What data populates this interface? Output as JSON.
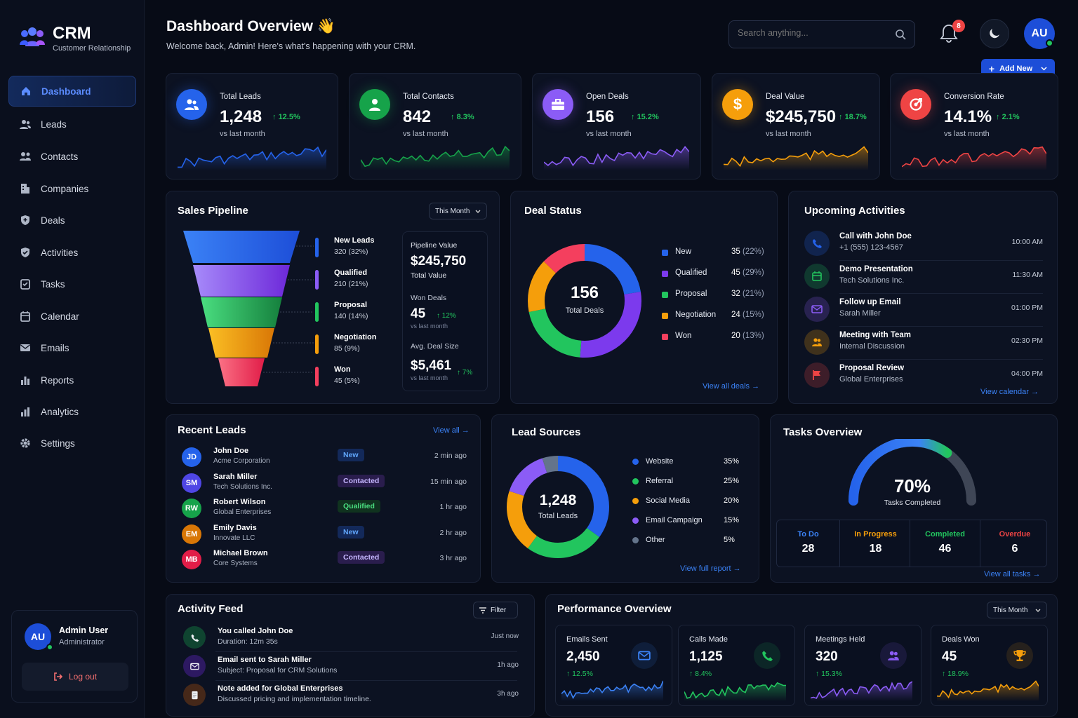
{
  "brand": {
    "name": "CRM",
    "subtitle": "Customer Relationship"
  },
  "nav": [
    {
      "label": "Dashboard",
      "icon": "home-icon",
      "active": true
    },
    {
      "label": "Leads",
      "icon": "users-icon"
    },
    {
      "label": "Contacts",
      "icon": "contacts-icon"
    },
    {
      "label": "Companies",
      "icon": "building-icon"
    },
    {
      "label": "Deals",
      "icon": "shield-icon"
    },
    {
      "label": "Activities",
      "icon": "activity-shield-icon"
    },
    {
      "label": "Tasks",
      "icon": "checklist-icon"
    },
    {
      "label": "Calendar",
      "icon": "calendar-icon"
    },
    {
      "label": "Emails",
      "icon": "mail-icon"
    },
    {
      "label": "Reports",
      "icon": "report-icon"
    },
    {
      "label": "Analytics",
      "icon": "bar-chart-icon"
    },
    {
      "label": "Settings",
      "icon": "gear-icon"
    }
  ],
  "user": {
    "initials": "AU",
    "name": "Admin User",
    "role": "Administrator",
    "logout": "Log out"
  },
  "header": {
    "title": "Dashboard Overview 👋",
    "subtitle": "Welcome back, Admin! Here's what's happening with your CRM.",
    "search_placeholder": "Search anything...",
    "notif_count": "8",
    "avatar": "AU",
    "add_new": "Add New"
  },
  "kpis": [
    {
      "title": "Total Leads",
      "value": "1,248",
      "change": "12.5%",
      "sub": "vs last month",
      "color": "#2563eb"
    },
    {
      "title": "Total Contacts",
      "value": "842",
      "change": "8.3%",
      "sub": "vs last month",
      "color": "#16a34a"
    },
    {
      "title": "Open Deals",
      "value": "156",
      "change": "15.2%",
      "sub": "vs last month",
      "color": "#8b5cf6"
    },
    {
      "title": "Deal Value",
      "value": "$245,750",
      "change": "18.7%",
      "sub": "vs last month",
      "color": "#f59e0b"
    },
    {
      "title": "Conversion Rate",
      "value": "14.1%",
      "change": "2.1%",
      "sub": "vs last month",
      "color": "#ef4444"
    }
  ],
  "pipeline": {
    "title": "Sales Pipeline",
    "period": "This Month",
    "stages": [
      {
        "name": "New Leads",
        "value": "320 (32%)",
        "color": "#2563eb"
      },
      {
        "name": "Qualified",
        "value": "210 (21%)",
        "color": "#8b5cf6"
      },
      {
        "name": "Proposal",
        "value": "140 (14%)",
        "color": "#22c55e"
      },
      {
        "name": "Negotiation",
        "value": "85 (9%)",
        "color": "#f59e0b"
      },
      {
        "name": "Won",
        "value": "45 (5%)",
        "color": "#f43f5e"
      }
    ],
    "summary": {
      "pv_label": "Pipeline Value",
      "pv_value": "$245,750",
      "pv_sub": "Total Value",
      "won_label": "Won Deals",
      "won_value": "45",
      "won_change": "12%",
      "won_sub": "vs last month",
      "avg_label": "Avg. Deal Size",
      "avg_value": "$5,461",
      "avg_change": "7%",
      "avg_sub": "vs last month"
    }
  },
  "deal_status": {
    "title": "Deal Status",
    "center_value": "156",
    "center_label": "Total Deals",
    "link": "View all deals",
    "items": [
      {
        "name": "New",
        "value": "35",
        "pct": "(22%)",
        "color": "#2563eb"
      },
      {
        "name": "Qualified",
        "value": "45",
        "pct": "(29%)",
        "color": "#7c3aed"
      },
      {
        "name": "Proposal",
        "value": "32",
        "pct": "(21%)",
        "color": "#22c55e"
      },
      {
        "name": "Negotiation",
        "value": "24",
        "pct": "(15%)",
        "color": "#f59e0b"
      },
      {
        "name": "Won",
        "value": "20",
        "pct": "(13%)",
        "color": "#f43f5e"
      }
    ]
  },
  "activities": {
    "title": "Upcoming Activities",
    "link": "View calendar",
    "items": [
      {
        "title": "Call with John Doe",
        "sub": "+1 (555) 123-4567",
        "time": "10:00 AM",
        "color": "#2563eb",
        "icon": "phone-icon"
      },
      {
        "title": "Demo Presentation",
        "sub": "Tech Solutions Inc.",
        "time": "11:30 AM",
        "color": "#22c55e",
        "icon": "calendar-icon"
      },
      {
        "title": "Follow up Email",
        "sub": "Sarah Miller",
        "time": "01:00 PM",
        "color": "#8b5cf6",
        "icon": "mail-icon"
      },
      {
        "title": "Meeting with Team",
        "sub": "Internal Discussion",
        "time": "02:30 PM",
        "color": "#f59e0b",
        "icon": "team-icon"
      },
      {
        "title": "Proposal Review",
        "sub": "Global Enterprises",
        "time": "04:00 PM",
        "color": "#ef4444",
        "icon": "flag-icon"
      }
    ]
  },
  "recent_leads": {
    "title": "Recent Leads",
    "link": "View all",
    "items": [
      {
        "initials": "JD",
        "name": "John Doe",
        "company": "Acme Corporation",
        "status": "New",
        "time": "2 min ago",
        "color": "#2563eb",
        "status_bg": "#13295a",
        "status_fg": "#60a5fa"
      },
      {
        "initials": "SM",
        "name": "Sarah Miller",
        "company": "Tech Solutions Inc.",
        "status": "Contacted",
        "time": "15 min ago",
        "color": "#4f46e5",
        "status_bg": "#2a1d4d",
        "status_fg": "#c4b5fd"
      },
      {
        "initials": "RW",
        "name": "Robert Wilson",
        "company": "Global Enterprises",
        "status": "Qualified",
        "time": "1 hr ago",
        "color": "#16a34a",
        "status_bg": "#10331f",
        "status_fg": "#4ade80"
      },
      {
        "initials": "EM",
        "name": "Emily Davis",
        "company": "Innovate LLC",
        "status": "New",
        "time": "2 hr ago",
        "color": "#d97706",
        "status_bg": "#13295a",
        "status_fg": "#60a5fa"
      },
      {
        "initials": "MB",
        "name": "Michael Brown",
        "company": "Core Systems",
        "status": "Contacted",
        "time": "3 hr ago",
        "color": "#e11d48",
        "status_bg": "#2a1d4d",
        "status_fg": "#c4b5fd"
      }
    ]
  },
  "lead_sources": {
    "title": "Lead Sources",
    "center_value": "1,248",
    "center_label": "Total Leads",
    "link": "View full report",
    "items": [
      {
        "name": "Website",
        "pct": "35%",
        "value": 35,
        "color": "#2563eb"
      },
      {
        "name": "Referral",
        "pct": "25%",
        "value": 25,
        "color": "#22c55e"
      },
      {
        "name": "Social Media",
        "pct": "20%",
        "value": 20,
        "color": "#f59e0b"
      },
      {
        "name": "Email Campaign",
        "pct": "15%",
        "value": 15,
        "color": "#8b5cf6"
      },
      {
        "name": "Other",
        "pct": "5%",
        "value": 5,
        "color": "#64748b"
      }
    ]
  },
  "tasks": {
    "title": "Tasks Overview",
    "percent": "70%",
    "percent_label": "Tasks Completed",
    "progress": 0.7,
    "link": "View all tasks",
    "stats": [
      {
        "label": "To Do",
        "value": "28",
        "color": "#3b82f6"
      },
      {
        "label": "In Progress",
        "value": "18",
        "color": "#f59e0b"
      },
      {
        "label": "Completed",
        "value": "46",
        "color": "#22c55e"
      },
      {
        "label": "Overdue",
        "value": "6",
        "color": "#ef4444"
      }
    ]
  },
  "feed": {
    "title": "Activity Feed",
    "filter": "Filter",
    "items": [
      {
        "title": "You called John Doe",
        "sub": "Duration: 12m 35s",
        "time": "Just now",
        "color": "#16a34a",
        "icon": "phone-icon"
      },
      {
        "title": "Email sent to Sarah Miller",
        "sub": "Subject: Proposal for CRM Solutions",
        "time": "1h ago",
        "color": "#6d28d9",
        "icon": "mail-icon"
      },
      {
        "title": "Note added for Global Enterprises",
        "sub": "Discussed pricing and implementation timeline.",
        "time": "3h ago",
        "color": "#b45309",
        "icon": "note-icon"
      }
    ]
  },
  "performance": {
    "title": "Performance Overview",
    "period": "This Month",
    "items": [
      {
        "label": "Emails Sent",
        "value": "2,450",
        "change": "12.5%",
        "color": "#3b82f6",
        "icon": "mail-icon"
      },
      {
        "label": "Calls Made",
        "value": "1,125",
        "change": "8.4%",
        "color": "#22c55e",
        "icon": "phone-icon"
      },
      {
        "label": "Meetings Held",
        "value": "320",
        "change": "15.3%",
        "color": "#8b5cf6",
        "icon": "team-icon"
      },
      {
        "label": "Deals Won",
        "value": "45",
        "change": "18.9%",
        "color": "#f59e0b",
        "icon": "trophy-icon"
      }
    ]
  }
}
